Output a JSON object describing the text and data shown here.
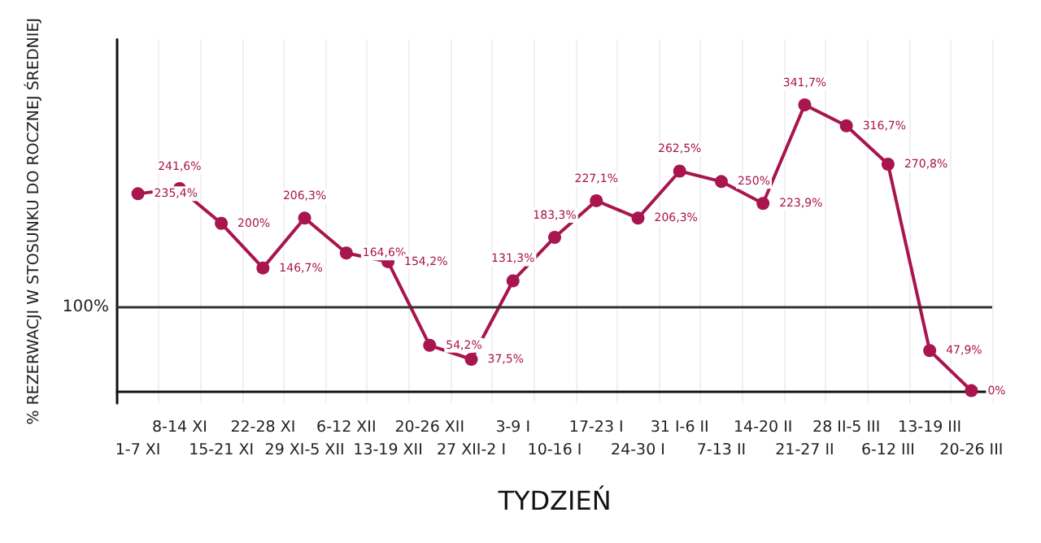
{
  "chart_data": {
    "type": "line",
    "xlabel": "TYDZIEŃ",
    "ylabel": "% REZERWACJI W STOSUNKU DO ROCZNEJ ŚREDNIEJ",
    "categories": [
      "1-7 XI",
      "8-14 XI",
      "15-21 XI",
      "22-28 XI",
      "29 XI-5 XII",
      "6-12 XII",
      "13-19 XII",
      "20-26 XII",
      "27 XII-2 I",
      "3-9 I",
      "10-16 I",
      "17-23 I",
      "24-30 I",
      "31 I-6 II",
      "7-13 II",
      "14-20 II",
      "21-27 II",
      "28 II-5 III",
      "6-12 III",
      "13-19 III",
      "20-26 III"
    ],
    "series": [
      {
        "color": "#a8154f",
        "values": [
          235.4,
          241.6,
          200,
          146.7,
          206.3,
          164.6,
          154.2,
          54.2,
          37.5,
          131.3,
          183.3,
          227.1,
          206.3,
          262.5,
          250,
          223.9,
          341.7,
          316.7,
          270.8,
          47.9,
          0
        ],
        "value_labels": [
          "235,4%",
          "241,6%",
          "200%",
          "146,7%",
          "206,3%",
          "164,6%",
          "154,2%",
          "54,2%",
          "37,5%",
          "131,3%",
          "183,3%",
          "227,1%",
          "206,3%",
          "262,5%",
          "250%",
          "223,9%",
          "341,7%",
          "316,7%",
          "270,8%",
          "47,9%",
          "0%"
        ]
      }
    ],
    "ylim": [
      -15,
      420
    ],
    "ref_lines": [
      {
        "axis": "y",
        "value": 100,
        "label": "100%",
        "color": "#333333"
      }
    ],
    "grid": "x",
    "marker": "circle",
    "line_style": "solid",
    "tick_labels": "x"
  }
}
